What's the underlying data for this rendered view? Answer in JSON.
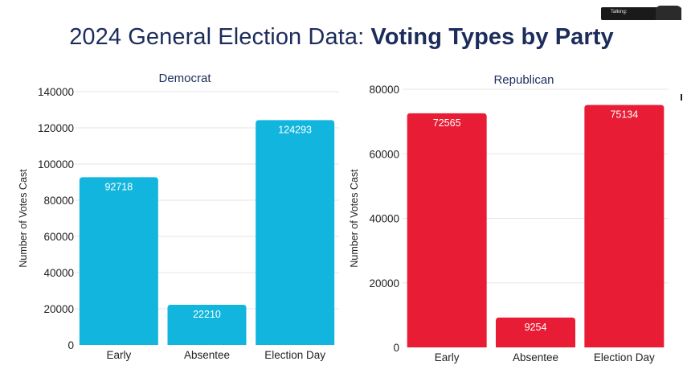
{
  "page": {
    "title_regular": "2024 General Election Data: ",
    "title_bold": "Voting Types by Party",
    "overlay_text": "Talking:"
  },
  "colors": {
    "democrat_bar": "#12B5DD",
    "republican_bar": "#E81D35",
    "title": "#1C2C5B"
  },
  "chart_data": [
    {
      "type": "bar",
      "title": "Democrat",
      "xlabel": "",
      "ylabel": "Number of Votes Cast",
      "categories": [
        "Early",
        "Absentee",
        "Election Day"
      ],
      "values": [
        92718,
        22210,
        124293
      ],
      "data_labels": [
        "92718",
        "22210",
        "124293"
      ],
      "ylim": [
        0,
        140000
      ],
      "yticks": [
        0,
        20000,
        40000,
        60000,
        80000,
        100000,
        120000,
        140000
      ],
      "ytick_labels": [
        "0",
        "20000",
        "40000",
        "60000",
        "80000",
        "100000",
        "120000",
        "140000"
      ],
      "grid": true,
      "color": "#12B5DD"
    },
    {
      "type": "bar",
      "title": "Republican",
      "xlabel": "",
      "ylabel": "Number of Votes Cast",
      "categories": [
        "Early",
        "Absentee",
        "Election Day"
      ],
      "values": [
        72565,
        9254,
        75134
      ],
      "data_labels": [
        "72565",
        "9254",
        "75134"
      ],
      "ylim": [
        0,
        80000
      ],
      "yticks": [
        0,
        20000,
        40000,
        60000,
        80000
      ],
      "ytick_labels": [
        "0",
        "20000",
        "40000",
        "60000",
        "80000"
      ],
      "grid": true,
      "color": "#E81D35"
    }
  ]
}
